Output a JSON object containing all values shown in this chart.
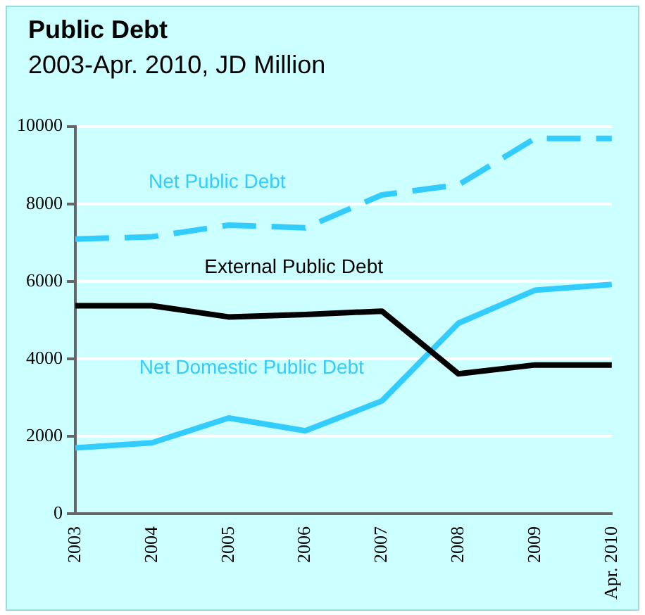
{
  "chart_data": {
    "type": "line",
    "title": "Public Debt",
    "subtitle": "2003-Apr. 2010, JD Million",
    "categories": [
      "2003",
      "2004",
      "2005",
      "2006",
      "2007",
      "2008",
      "2009",
      "Apr. 2010"
    ],
    "series": [
      {
        "name": "Net Public Debt",
        "color": "#33ccff",
        "line_style": "dashed",
        "values": [
          7090,
          7150,
          7450,
          7380,
          8230,
          8490,
          9690,
          9690
        ]
      },
      {
        "name": "External Public Debt",
        "color": "#000000",
        "line_style": "solid",
        "values": [
          5370,
          5370,
          5080,
          5140,
          5230,
          3610,
          3840,
          3840
        ]
      },
      {
        "name": "Net Domestic Public Debt",
        "color": "#33ccff",
        "line_style": "solid",
        "values": [
          1700,
          1830,
          2470,
          2140,
          2910,
          4920,
          5770,
          5920
        ]
      }
    ],
    "ylim": [
      0,
      10000
    ],
    "yticks": [
      0,
      2000,
      4000,
      6000,
      8000,
      10000
    ],
    "grid": "y",
    "legend": false,
    "marker": "none"
  }
}
